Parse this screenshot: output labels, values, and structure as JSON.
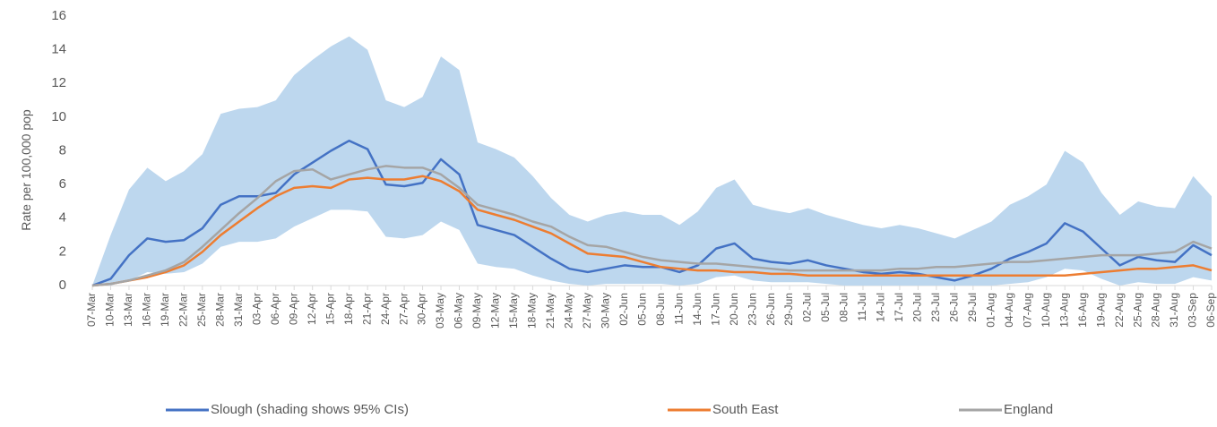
{
  "chart_data": {
    "type": "line",
    "y_label": "Rate per 100,000 pop",
    "categories": [
      "07-Mar",
      "10-Mar",
      "13-Mar",
      "16-Mar",
      "19-Mar",
      "22-Mar",
      "25-Mar",
      "28-Mar",
      "31-Mar",
      "03-Apr",
      "06-Apr",
      "09-Apr",
      "12-Apr",
      "15-Apr",
      "18-Apr",
      "21-Apr",
      "24-Apr",
      "27-Apr",
      "30-Apr",
      "03-May",
      "06-May",
      "09-May",
      "12-May",
      "15-May",
      "18-May",
      "21-May",
      "24-May",
      "27-May",
      "30-May",
      "02-Jun",
      "05-Jun",
      "08-Jun",
      "11-Jun",
      "14-Jun",
      "17-Jun",
      "20-Jun",
      "23-Jun",
      "26-Jun",
      "29-Jun",
      "02-Jul",
      "05-Jul",
      "08-Jul",
      "11-Jul",
      "14-Jul",
      "17-Jul",
      "20-Jul",
      "23-Jul",
      "26-Jul",
      "29-Jul",
      "01-Aug",
      "04-Aug",
      "07-Aug",
      "10-Aug",
      "13-Aug",
      "16-Aug",
      "19-Aug",
      "22-Aug",
      "25-Aug",
      "28-Aug",
      "31-Aug",
      "03-Sep",
      "06-Sep"
    ],
    "series": [
      {
        "name": "Slough (shading shows 95% CIs)",
        "color": "#4472c4",
        "band_color": "#bdd7ee",
        "values": [
          0,
          0.4,
          1.8,
          2.8,
          2.6,
          2.7,
          3.4,
          4.8,
          5.3,
          5.3,
          5.5,
          6.6,
          7.3,
          8.0,
          8.6,
          8.1,
          6.0,
          5.9,
          6.1,
          7.5,
          6.6,
          3.6,
          3.3,
          3.0,
          2.3,
          1.6,
          1.0,
          0.8,
          1.0,
          1.2,
          1.1,
          1.1,
          0.8,
          1.2,
          2.2,
          2.5,
          1.6,
          1.4,
          1.3,
          1.5,
          1.2,
          1.0,
          0.8,
          0.7,
          0.8,
          0.7,
          0.5,
          0.3,
          0.6,
          1.0,
          1.6,
          2.0,
          2.5,
          3.7,
          3.2,
          2.2,
          1.2,
          1.7,
          1.5,
          1.4,
          2.4,
          1.8
        ],
        "ci_upper": [
          0,
          3,
          5.7,
          7.0,
          6.2,
          6.8,
          7.8,
          10.2,
          10.5,
          10.6,
          11.0,
          12.5,
          13.4,
          14.2,
          14.8,
          14.0,
          11,
          10.6,
          11.2,
          13.6,
          12.8,
          8.5,
          8.1,
          7.6,
          6.5,
          5.2,
          4.2,
          3.8,
          4.2,
          4.4,
          4.2,
          4.2,
          3.6,
          4.4,
          5.8,
          6.3,
          4.8,
          4.5,
          4.3,
          4.6,
          4.2,
          3.9,
          3.6,
          3.4,
          3.6,
          3.4,
          3.1,
          2.8,
          3.3,
          3.8,
          4.8,
          5.3,
          6.0,
          8.0,
          7.3,
          5.5,
          4.2,
          5.0,
          4.7,
          4.6,
          6.5,
          5.3
        ],
        "ci_lower": [
          0,
          0,
          0.3,
          0.8,
          0.7,
          0.8,
          1.3,
          2.3,
          2.6,
          2.6,
          2.8,
          3.5,
          4.0,
          4.5,
          4.5,
          4.4,
          2.9,
          2.8,
          3.0,
          3.8,
          3.3,
          1.3,
          1.1,
          1.0,
          0.6,
          0.3,
          0.1,
          0,
          0.1,
          0.1,
          0.1,
          0.1,
          0,
          0.1,
          0.5,
          0.6,
          0.3,
          0.2,
          0.2,
          0.2,
          0.1,
          0,
          0,
          0,
          0,
          0,
          0,
          0,
          0,
          0,
          0.1,
          0.2,
          0.5,
          1.0,
          0.9,
          0.4,
          0,
          0.2,
          0.1,
          0.1,
          0.5,
          0.3
        ]
      },
      {
        "name": "South East",
        "color": "#ed7d31",
        "values": [
          0,
          0.1,
          0.3,
          0.5,
          0.8,
          1.2,
          2.0,
          3.0,
          3.8,
          4.6,
          5.3,
          5.8,
          5.9,
          5.8,
          6.3,
          6.4,
          6.3,
          6.3,
          6.5,
          6.2,
          5.6,
          4.5,
          4.2,
          3.9,
          3.5,
          3.1,
          2.5,
          1.9,
          1.8,
          1.7,
          1.4,
          1.1,
          1.0,
          0.9,
          0.9,
          0.8,
          0.8,
          0.7,
          0.7,
          0.6,
          0.6,
          0.6,
          0.6,
          0.6,
          0.6,
          0.6,
          0.6,
          0.6,
          0.6,
          0.6,
          0.6,
          0.6,
          0.6,
          0.6,
          0.7,
          0.8,
          0.9,
          1.0,
          1.0,
          1.1,
          1.2,
          0.9
        ]
      },
      {
        "name": "England",
        "color": "#a5a5a5",
        "values": [
          0,
          0.1,
          0.3,
          0.6,
          0.9,
          1.4,
          2.3,
          3.3,
          4.3,
          5.2,
          6.2,
          6.8,
          6.9,
          6.3,
          6.6,
          6.9,
          7.1,
          7.0,
          7.0,
          6.6,
          5.8,
          4.8,
          4.5,
          4.2,
          3.8,
          3.5,
          2.9,
          2.4,
          2.3,
          2.0,
          1.7,
          1.5,
          1.4,
          1.3,
          1.3,
          1.2,
          1.1,
          1.0,
          0.9,
          0.9,
          0.9,
          0.9,
          0.9,
          0.9,
          1.0,
          1.0,
          1.1,
          1.1,
          1.2,
          1.3,
          1.4,
          1.4,
          1.5,
          1.6,
          1.7,
          1.8,
          1.8,
          1.8,
          1.9,
          2.0,
          2.6,
          2.2
        ]
      }
    ],
    "ylim": [
      0,
      16
    ],
    "yticks": [
      0,
      2,
      4,
      6,
      8,
      10,
      12,
      14,
      16
    ],
    "grid": false,
    "legend": "bottom"
  }
}
